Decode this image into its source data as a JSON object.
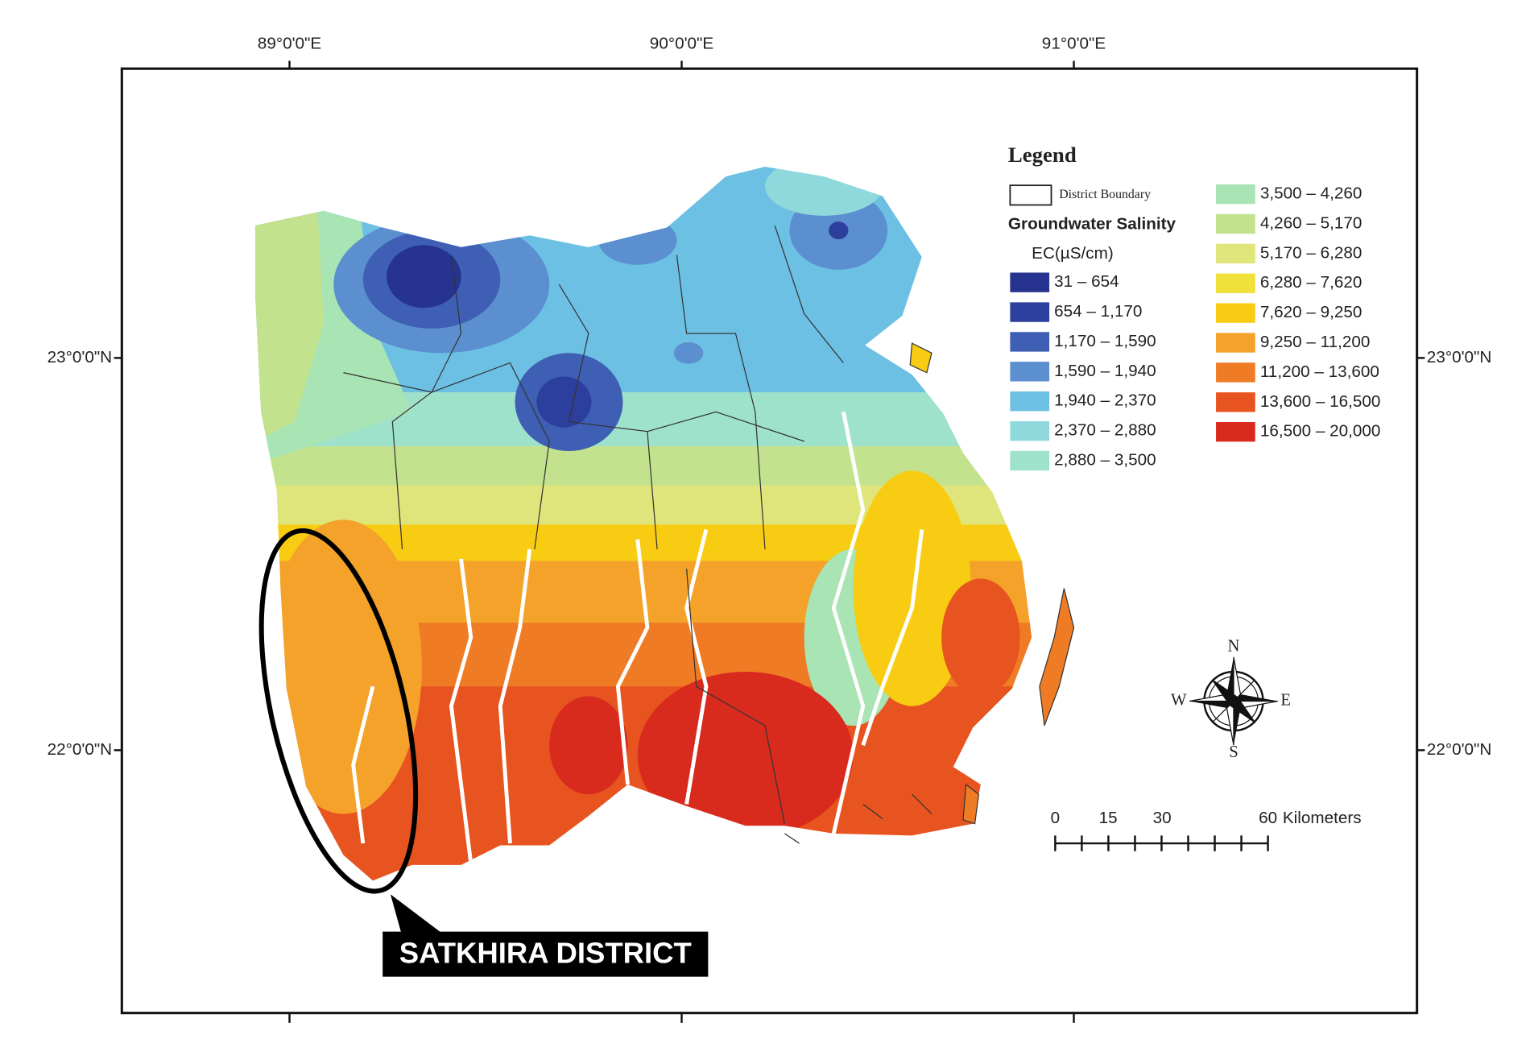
{
  "frame": {
    "longitude_labels": [
      "89°0'0\"E",
      "90°0'0\"E",
      "91°0'0\"E"
    ],
    "latitude_labels": [
      "23°0'0\"N",
      "22°0'0\"N"
    ]
  },
  "legend": {
    "title": "Legend",
    "boundary_label": "District Boundary",
    "subtitle": "Groundwater Salinity",
    "unit": "EC(µS/cm)",
    "classes": [
      {
        "label": "31 – 654",
        "color": "#27348f"
      },
      {
        "label": "654 – 1,170",
        "color": "#2d3f9c"
      },
      {
        "label": "1,170 – 1,590",
        "color": "#3f5fb5"
      },
      {
        "label": "1,590 – 1,940",
        "color": "#5b8fcf"
      },
      {
        "label": "1,940 – 2,370",
        "color": "#6cc0e4"
      },
      {
        "label": "2,370 – 2,880",
        "color": "#8fd9dc"
      },
      {
        "label": "2,880 – 3,500",
        "color": "#9fe2cc"
      },
      {
        "label": "3,500 – 4,260",
        "color": "#a8e4b4"
      },
      {
        "label": "4,260 – 5,170",
        "color": "#c2e28e"
      },
      {
        "label": "5,170 – 6,280",
        "color": "#dfe57a"
      },
      {
        "label": "6,280 – 7,620",
        "color": "#f0e03a"
      },
      {
        "label": "7,620 – 9,250",
        "color": "#f7cc12"
      },
      {
        "label": "9,250 – 11,200",
        "color": "#f4a229"
      },
      {
        "label": "11,200 – 13,600",
        "color": "#ef7b24"
      },
      {
        "label": "13,600 – 16,500",
        "color": "#e8541f"
      },
      {
        "label": "16,500 – 20,000",
        "color": "#d82b1e"
      }
    ]
  },
  "scale_bar": {
    "labels": [
      "0",
      "15",
      "30",
      "60"
    ],
    "unit": "Kilometers"
  },
  "compass": {
    "n": "N",
    "s": "S",
    "e": "E",
    "w": "W"
  },
  "annotation": "SATKHIRA DISTRICT"
}
